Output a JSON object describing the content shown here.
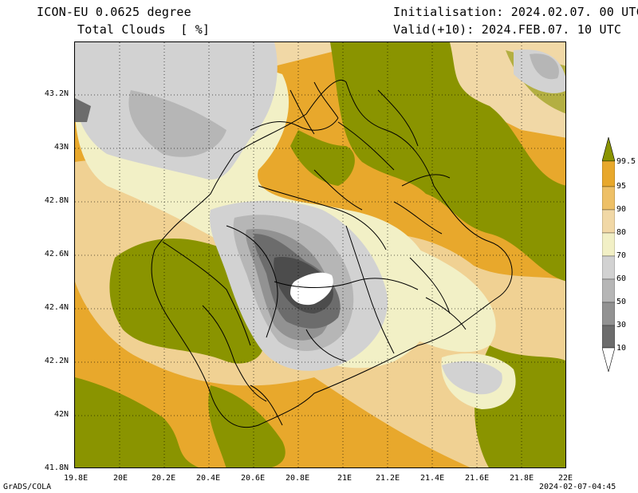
{
  "header": {
    "model": "ICON-EU 0.0625 degree",
    "variable": "Total Clouds  [ %]",
    "init": "Initialisation: 2024.02.07. 00 UTC",
    "valid": "Valid(+10): 2024.FEB.07. 10 UTC"
  },
  "axes": {
    "x_ticks": [
      "19.8E",
      "20E",
      "20.2E",
      "20.4E",
      "20.6E",
      "20.8E",
      "21E",
      "21.2E",
      "21.4E",
      "21.6E",
      "21.8E",
      "22E"
    ],
    "y_ticks": [
      "43.2N",
      "43N",
      "42.8N",
      "42.6N",
      "42.4N",
      "42.2N",
      "42N",
      "41.8N"
    ]
  },
  "colorbar": {
    "labels": [
      "99.5",
      "95",
      "90",
      "80",
      "70",
      "60",
      "50",
      "30",
      "10"
    ],
    "colors": [
      "#8a9400",
      "#e8a82c",
      "#eec066",
      "#f1d8a6",
      "#f2f0c6",
      "#d2d2d2",
      "#b6b6b6",
      "#929292",
      "#6c6c6c",
      "#4c4c4c",
      "#ffffff"
    ]
  },
  "footer": {
    "left": "GrADS/COLA",
    "right": "2024-02-07-04:45"
  }
}
